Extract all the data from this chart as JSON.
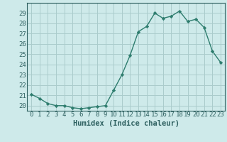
{
  "x": [
    0,
    1,
    2,
    3,
    4,
    5,
    6,
    7,
    8,
    9,
    10,
    11,
    12,
    13,
    14,
    15,
    16,
    17,
    18,
    19,
    20,
    21,
    22,
    23
  ],
  "y": [
    21.1,
    20.7,
    20.2,
    20.0,
    20.0,
    19.8,
    19.7,
    19.8,
    19.9,
    20.0,
    21.5,
    23.0,
    24.9,
    27.2,
    27.7,
    29.0,
    28.5,
    28.7,
    29.2,
    28.2,
    28.4,
    27.6,
    25.3,
    24.2
  ],
  "line_color": "#2e7d6e",
  "marker": "D",
  "marker_size": 2.2,
  "bg_color": "#ceeaea",
  "grid_color": "#aacccc",
  "xlabel": "Humidex (Indice chaleur)",
  "ylim": [
    19.5,
    30.0
  ],
  "xlim": [
    -0.5,
    23.5
  ],
  "yticks": [
    20,
    21,
    22,
    23,
    24,
    25,
    26,
    27,
    28,
    29
  ],
  "xticks": [
    0,
    1,
    2,
    3,
    4,
    5,
    6,
    7,
    8,
    9,
    10,
    11,
    12,
    13,
    14,
    15,
    16,
    17,
    18,
    19,
    20,
    21,
    22,
    23
  ],
  "tick_color": "#2e6060",
  "axis_color": "#2e6060",
  "tick_fontsize": 6.5,
  "xlabel_fontsize": 7.5
}
